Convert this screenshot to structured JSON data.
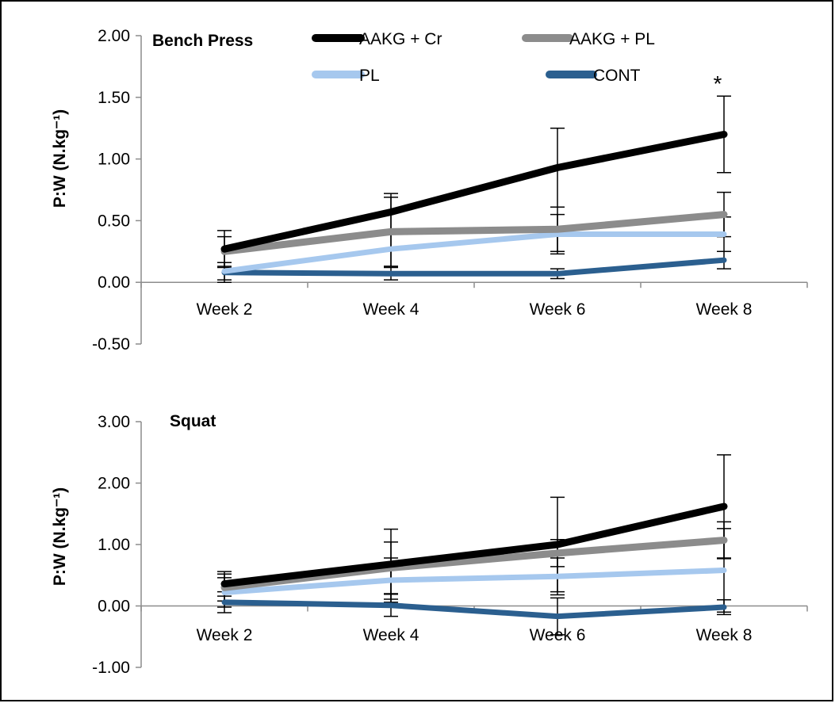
{
  "colors": {
    "aakg_cr": "#000000",
    "aakg_pl": "#8c8c8c",
    "pl": "#a6c8ee",
    "cont": "#2b5f8f",
    "axis": "#8c8c8c",
    "error_bar": "#000000"
  },
  "legend": [
    "AAKG + Cr",
    "AAKG + PL",
    "PL",
    "CONT"
  ],
  "chart_data": [
    {
      "type": "line",
      "title": "Bench Press",
      "ylabel": "P:W (N.kg⁻¹)",
      "ylim": [
        -0.5,
        2.0
      ],
      "yticks": [
        -0.5,
        0,
        0.5,
        1.0,
        1.5,
        2.0
      ],
      "ytick_labels": [
        "-0.50",
        "0.00",
        "0.50",
        "1.00",
        "1.50",
        "2.00"
      ],
      "categories": [
        "Week 2",
        "Week 4",
        "Week 6",
        "Week 8"
      ],
      "grid": false,
      "series": [
        {
          "name": "AAKG + Cr",
          "values": [
            0.27,
            0.57,
            0.93,
            1.2
          ],
          "errors": [
            0.15,
            0.15,
            0.32,
            0.31
          ]
        },
        {
          "name": "AAKG + PL",
          "values": [
            0.25,
            0.41,
            0.43,
            0.55
          ],
          "errors": [
            0.12,
            0.28,
            0.18,
            0.18
          ]
        },
        {
          "name": "PL",
          "values": [
            0.09,
            0.27,
            0.39,
            0.39
          ],
          "errors": [
            0.07,
            0.14,
            0.16,
            0.14
          ]
        },
        {
          "name": "CONT",
          "values": [
            0.08,
            0.07,
            0.07,
            0.18
          ],
          "errors": [
            0.08,
            0.05,
            0.04,
            0.07
          ]
        }
      ],
      "annotations": [
        {
          "text": "*",
          "x": "Week 8"
        }
      ]
    },
    {
      "type": "line",
      "title": "Squat",
      "ylabel": "P:W (N.kg⁻¹)",
      "ylim": [
        -1.0,
        3.0
      ],
      "yticks": [
        -1,
        0,
        1,
        2,
        3
      ],
      "ytick_labels": [
        "-1.00",
        "0.00",
        "1.00",
        "2.00",
        "3.00"
      ],
      "categories": [
        "Week 2",
        "Week 4",
        "Week 6",
        "Week 8"
      ],
      "grid": false,
      "series": [
        {
          "name": "AAKG + Cr",
          "values": [
            0.36,
            0.68,
            1.0,
            1.62
          ],
          "errors": [
            0.2,
            0.57,
            0.77,
            0.84
          ]
        },
        {
          "name": "AAKG + PL",
          "values": [
            0.3,
            0.62,
            0.86,
            1.07
          ],
          "errors": [
            0.22,
            0.42,
            0.22,
            0.3
          ]
        },
        {
          "name": "PL",
          "values": [
            0.22,
            0.42,
            0.48,
            0.58
          ],
          "errors": [
            0.24,
            0.36,
            0.3,
            0.68
          ]
        },
        {
          "name": "CONT",
          "values": [
            0.06,
            0.01,
            -0.17,
            -0.02
          ],
          "errors": [
            0.17,
            0.18,
            0.3,
            0.12
          ]
        }
      ]
    }
  ]
}
